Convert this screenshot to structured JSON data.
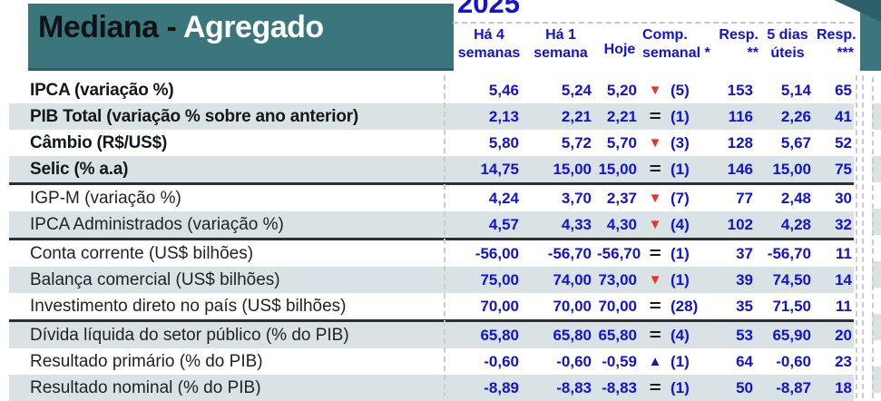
{
  "banner": {
    "title_black": "Mediana - ",
    "title_white": "Agregado"
  },
  "header": {
    "year": "2025"
  },
  "colors": {
    "teal": "#3a767c",
    "teal_dark": "#2e6067",
    "value_blue": "#1212d0",
    "down_red": "#ee3124",
    "row_shade": "#d9e3e6"
  },
  "icons": {
    "triangle_down": "▼",
    "triangle_up": "▲",
    "equals": "="
  },
  "table": {
    "columns": [
      {
        "id": "ha4",
        "line1": "Há 4",
        "line2": "semanas"
      },
      {
        "id": "ha1",
        "line1": "Há 1",
        "line2": "semana"
      },
      {
        "id": "hoje",
        "line1": "Hoje",
        "line2": ""
      },
      {
        "id": "comp",
        "line1": "Comp.",
        "line2": "semanal *"
      },
      {
        "id": "resp2",
        "line1": "Resp.",
        "line2": "**"
      },
      {
        "id": "dias5",
        "line1": "5 dias",
        "line2": "úteis"
      },
      {
        "id": "resp3",
        "line1": "Resp.",
        "line2": "***"
      }
    ],
    "rows": [
      {
        "label": "IPCA (variação %)",
        "bold": true,
        "shade": false,
        "sep_bottom": false,
        "ha4": "5,46",
        "ha1": "5,24",
        "hoje": "5,20",
        "dir": "down",
        "comp": "(5)",
        "resp2": "153",
        "dias5": "5,14",
        "resp3": "65"
      },
      {
        "label": "PIB Total (variação % sobre ano anterior)",
        "bold": true,
        "shade": true,
        "sep_bottom": false,
        "ha4": "2,13",
        "ha1": "2,21",
        "hoje": "2,21",
        "dir": "equal",
        "comp": "(1)",
        "resp2": "116",
        "dias5": "2,26",
        "resp3": "41"
      },
      {
        "label": "Câmbio (R$/US$)",
        "bold": true,
        "shade": false,
        "sep_bottom": false,
        "ha4": "5,80",
        "ha1": "5,72",
        "hoje": "5,70",
        "dir": "down",
        "comp": "(3)",
        "resp2": "128",
        "dias5": "5,67",
        "resp3": "52"
      },
      {
        "label": "Selic (% a.a)",
        "bold": true,
        "shade": true,
        "sep_bottom": true,
        "ha4": "14,75",
        "ha1": "15,00",
        "hoje": "15,00",
        "dir": "equal",
        "comp": "(1)",
        "resp2": "146",
        "dias5": "15,00",
        "resp3": "75"
      },
      {
        "label": "IGP-M (variação %)",
        "bold": false,
        "shade": false,
        "sep_bottom": false,
        "ha4": "4,24",
        "ha1": "3,70",
        "hoje": "2,37",
        "dir": "down",
        "comp": "(7)",
        "resp2": "77",
        "dias5": "2,48",
        "resp3": "30"
      },
      {
        "label": "IPCA Administrados (variação %)",
        "bold": false,
        "shade": true,
        "sep_bottom": true,
        "ha4": "4,57",
        "ha1": "4,33",
        "hoje": "4,30",
        "dir": "down",
        "comp": "(4)",
        "resp2": "102",
        "dias5": "4,28",
        "resp3": "32"
      },
      {
        "label": "Conta corrente (US$ bilhões)",
        "bold": false,
        "shade": false,
        "sep_bottom": false,
        "ha4": "-56,00",
        "ha1": "-56,70",
        "hoje": "-56,70",
        "dir": "equal",
        "comp": "(1)",
        "resp2": "37",
        "dias5": "-56,70",
        "resp3": "11"
      },
      {
        "label": "Balança comercial (US$ bilhões)",
        "bold": false,
        "shade": true,
        "sep_bottom": false,
        "ha4": "75,00",
        "ha1": "74,00",
        "hoje": "73,00",
        "dir": "down",
        "comp": "(1)",
        "resp2": "39",
        "dias5": "74,50",
        "resp3": "14"
      },
      {
        "label": "Investimento direto no país (US$ bilhões)",
        "bold": false,
        "shade": false,
        "sep_bottom": true,
        "ha4": "70,00",
        "ha1": "70,00",
        "hoje": "70,00",
        "dir": "equal",
        "comp": "(28)",
        "resp2": "35",
        "dias5": "71,50",
        "resp3": "11"
      },
      {
        "label": "Dívida líquida do setor público (% do PIB)",
        "bold": false,
        "shade": true,
        "sep_bottom": false,
        "ha4": "65,80",
        "ha1": "65,80",
        "hoje": "65,80",
        "dir": "equal",
        "comp": "(4)",
        "resp2": "53",
        "dias5": "65,90",
        "resp3": "20"
      },
      {
        "label": "Resultado primário (% do PIB)",
        "bold": false,
        "shade": false,
        "sep_bottom": false,
        "ha4": "-0,60",
        "ha1": "-0,60",
        "hoje": "-0,59",
        "dir": "up",
        "comp": "(1)",
        "resp2": "64",
        "dias5": "-0,60",
        "resp3": "23"
      },
      {
        "label": "Resultado nominal (% do PIB)",
        "bold": false,
        "shade": true,
        "sep_bottom": false,
        "ha4": "-8,89",
        "ha1": "-8,83",
        "hoje": "-8,83",
        "dir": "equal",
        "comp": "(1)",
        "resp2": "50",
        "dias5": "-8,87",
        "resp3": "18"
      }
    ]
  }
}
